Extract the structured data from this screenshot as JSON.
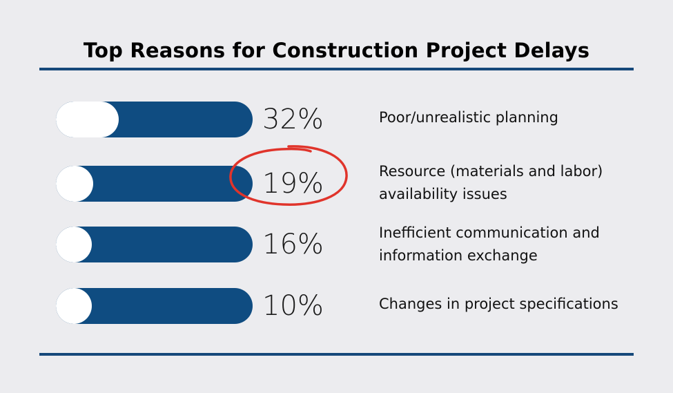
{
  "chart_data": {
    "type": "bar",
    "title": "Top Reasons for Construction Project Delays",
    "max": 100,
    "items": [
      {
        "value": 32,
        "value_label": "32%",
        "label_lines": [
          "Poor/unrealistic planning"
        ]
      },
      {
        "value": 19,
        "value_label": "19%",
        "label_lines": [
          "Resource (materials and labor)",
          "availability issues"
        ],
        "highlighted": true
      },
      {
        "value": 16,
        "value_label": "16%",
        "label_lines": [
          "Inefficient communication and",
          "information exchange"
        ]
      },
      {
        "value": 10,
        "value_label": "10%",
        "label_lines": [
          "Changes in project specifications"
        ]
      }
    ]
  },
  "colors": {
    "background": "#ececef",
    "bar": "#0f4c81",
    "knob": "#ffffff",
    "rule": "#16487a",
    "highlight": "#e0342b"
  }
}
